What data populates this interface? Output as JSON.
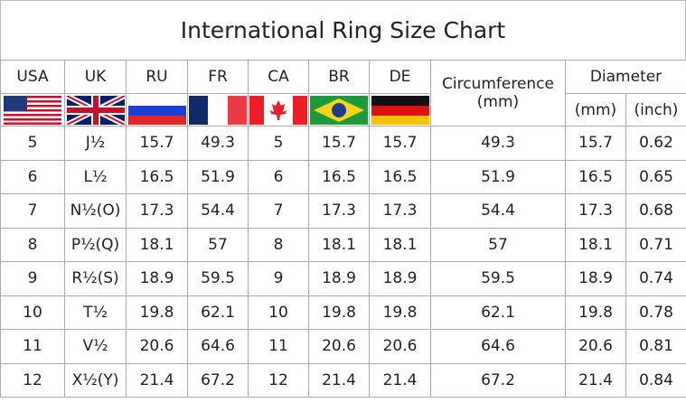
{
  "title": "International Ring Size Chart",
  "headers": {
    "usa": "USA",
    "uk": "UK",
    "ru": "RU",
    "fr": "FR",
    "ca": "CA",
    "br": "BR",
    "de": "DE",
    "circumference": "Circumference",
    "circumference_unit": "(mm)",
    "diameter": "Diameter",
    "diameter_mm": "(mm)",
    "diameter_inch": "(inch)"
  },
  "flags": [
    "usa-flag-icon",
    "uk-flag-icon",
    "russia-flag-icon",
    "france-flag-icon",
    "canada-flag-icon",
    "brazil-flag-icon",
    "germany-flag-icon"
  ],
  "rows": [
    [
      "5",
      "J½",
      "15.7",
      "49.3",
      "5",
      "15.7",
      "15.7",
      "49.3",
      "15.7",
      "0.62"
    ],
    [
      "6",
      "L½",
      "16.5",
      "51.9",
      "6",
      "16.5",
      "16.5",
      "51.9",
      "16.5",
      "0.65"
    ],
    [
      "7",
      "N½(O)",
      "17.3",
      "54.4",
      "7",
      "17.3",
      "17.3",
      "54.4",
      "17.3",
      "0.68"
    ],
    [
      "8",
      "P½(Q)",
      "18.1",
      "57",
      "8",
      "18.1",
      "18.1",
      "57",
      "18.1",
      "0.71"
    ],
    [
      "9",
      "R½(S)",
      "18.9",
      "59.5",
      "9",
      "18.9",
      "18.9",
      "59.5",
      "18.9",
      "0.74"
    ],
    [
      "10",
      "T½",
      "19.8",
      "62.1",
      "10",
      "19.8",
      "19.8",
      "62.1",
      "19.8",
      "0.78"
    ],
    [
      "11",
      "V½",
      "20.6",
      "64.6",
      "11",
      "20.6",
      "20.6",
      "64.6",
      "20.6",
      "0.81"
    ],
    [
      "12",
      "X½(Y)",
      "21.4",
      "67.2",
      "12",
      "21.4",
      "21.4",
      "67.2",
      "21.4",
      "0.84"
    ]
  ]
}
